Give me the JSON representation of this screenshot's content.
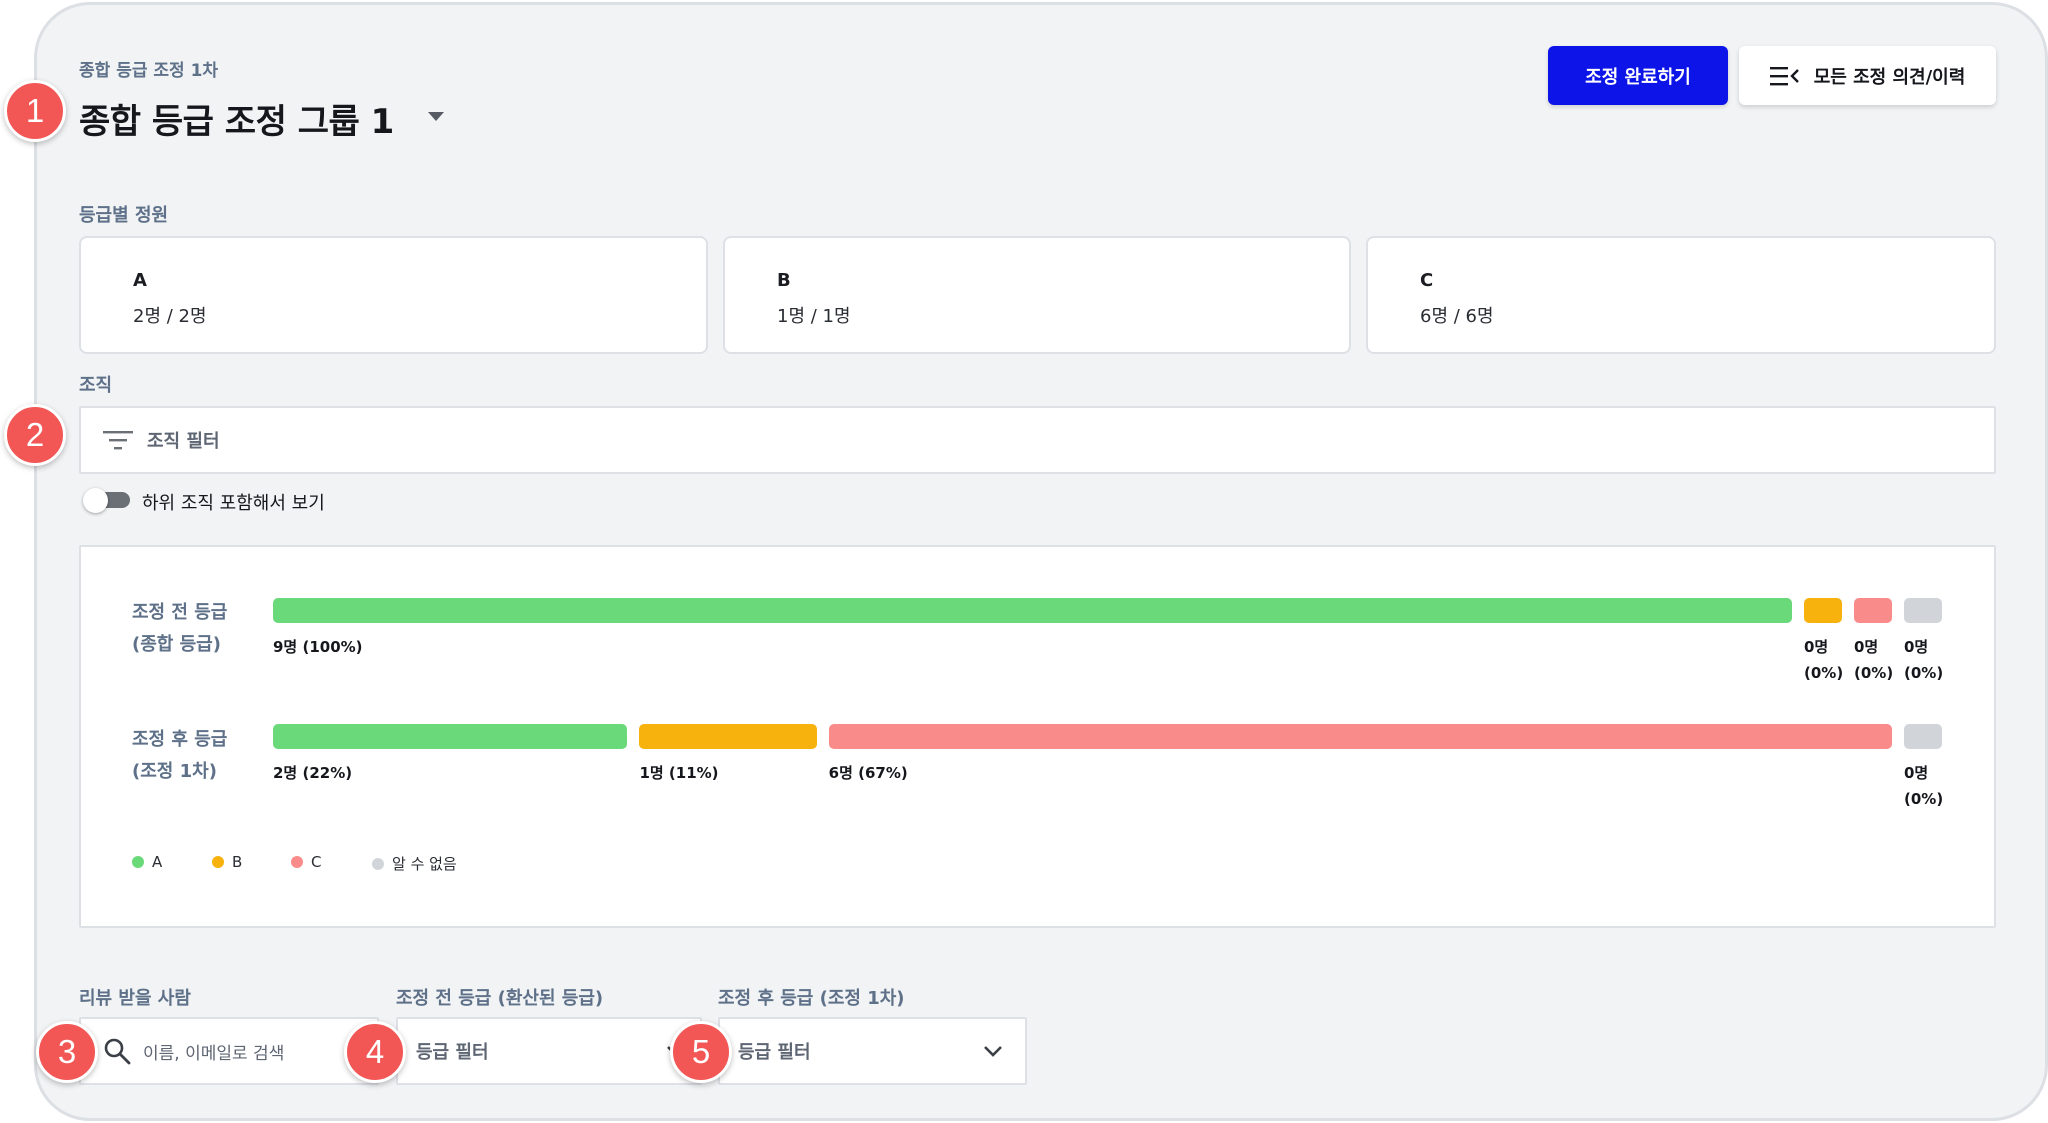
{
  "header": {
    "subtitle": "종합 등급 조정 1차",
    "title": "종합 등급 조정 그룹 1",
    "complete_button": "조정 완료하기",
    "history_button": "모든 조정 의견/이력"
  },
  "quota": {
    "label": "등급별 정원",
    "cards": [
      {
        "grade": "A",
        "count": "2명 / 2명"
      },
      {
        "grade": "B",
        "count": "1명 / 1명"
      },
      {
        "grade": "C",
        "count": "6명 / 6명"
      }
    ]
  },
  "organization": {
    "label": "조직",
    "filter_placeholder": "조직 필터",
    "toggle_label": "하위 조직 포함해서 보기",
    "toggle_on": false
  },
  "colors": {
    "A": "#6ad97a",
    "B": "#f7b20e",
    "C": "#f98c8a",
    "unknown": "#d1d5da",
    "primary": "#0c14e8",
    "badge": "#f25756"
  },
  "distribution": {
    "rows": [
      {
        "label_line1": "조정 전 등급",
        "label_line2": "(종합 등급)",
        "segments": [
          {
            "grade": "A",
            "count": 9,
            "text": "9명 (100%)"
          },
          {
            "grade": "B",
            "count": 0,
            "text": "0명 (0%)",
            "text_line1": "0명",
            "text_line2": "(0%)"
          },
          {
            "grade": "C",
            "count": 0,
            "text": "0명 (0%)",
            "text_line1": "0명",
            "text_line2": "(0%)"
          },
          {
            "grade": "unknown",
            "count": 0,
            "text": "0명 (0%)",
            "text_line1": "0명",
            "text_line2": "(0%)"
          }
        ]
      },
      {
        "label_line1": "조정 후 등급",
        "label_line2": "(조정 1차)",
        "segments": [
          {
            "grade": "A",
            "count": 2,
            "text": "2명 (22%)"
          },
          {
            "grade": "B",
            "count": 1,
            "text": "1명 (11%)"
          },
          {
            "grade": "C",
            "count": 6,
            "text": "6명 (67%)"
          },
          {
            "grade": "unknown",
            "count": 0,
            "text": "0명 (0%)",
            "text_line1": "0명",
            "text_line2": "(0%)"
          }
        ]
      }
    ],
    "legend": [
      {
        "grade": "A",
        "label": "A"
      },
      {
        "grade": "B",
        "label": "B"
      },
      {
        "grade": "C",
        "label": "C"
      },
      {
        "grade": "unknown",
        "label": "알 수 없음"
      }
    ]
  },
  "filters": {
    "reviewee_label": "리뷰 받을 사람",
    "reviewee_placeholder": "이름, 이메일로 검색",
    "before_label": "조정 전 등급 (환산된 등급)",
    "before_placeholder": "등급 필터",
    "after_label": "조정 후 등급 (조정 1차)",
    "after_placeholder": "등급 필터"
  },
  "annotations": [
    "1",
    "2",
    "3",
    "4",
    "5"
  ]
}
